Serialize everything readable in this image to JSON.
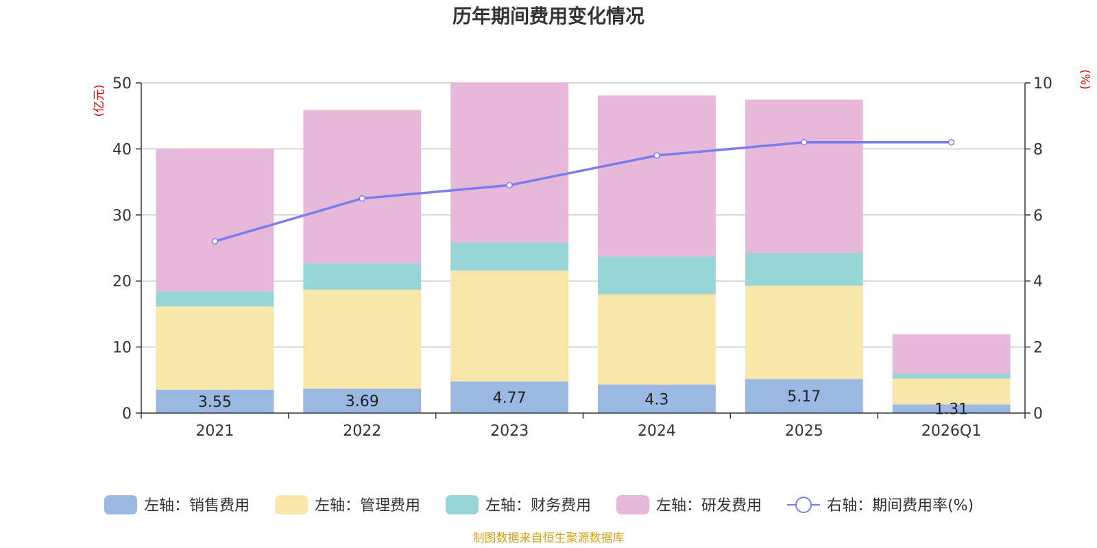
{
  "chart_data": {
    "type": "bar",
    "stacked": true,
    "title": "历年期间费用变化情况",
    "categories": [
      "2021",
      "2022",
      "2023",
      "2024",
      "2025",
      "2026Q1"
    ],
    "left_axis": {
      "unit": "(亿元)",
      "ylim": [
        0,
        50
      ],
      "ticks": [
        0,
        10,
        20,
        30,
        40,
        50
      ]
    },
    "right_axis": {
      "unit": "(%)",
      "ylim": [
        0,
        10
      ],
      "ticks": [
        0,
        2,
        4,
        6,
        8,
        10
      ]
    },
    "series": [
      {
        "name": "左轴：销售费用",
        "axis": "left",
        "type": "bar",
        "color": "#9bb8e2",
        "values": [
          3.55,
          3.69,
          4.77,
          4.3,
          5.17,
          1.31
        ],
        "labels": [
          "3.55",
          "3.69",
          "4.77",
          "4.3",
          "5.17",
          "1.31"
        ]
      },
      {
        "name": "左轴：管理费用",
        "axis": "left",
        "type": "bar",
        "color": "#f8e7a9",
        "values": [
          12.6,
          15.0,
          16.8,
          13.7,
          14.1,
          3.9
        ]
      },
      {
        "name": "左轴：财务费用",
        "axis": "left",
        "type": "bar",
        "color": "#98d5d6",
        "values": [
          2.3,
          4.0,
          4.3,
          5.7,
          5.0,
          0.8
        ]
      },
      {
        "name": "左轴：研发费用",
        "axis": "left",
        "type": "bar",
        "color": "#e7b8d9",
        "values": [
          21.6,
          23.2,
          24.2,
          24.4,
          23.2,
          5.9
        ]
      },
      {
        "name": "右轴：期间费用率(%)",
        "axis": "right",
        "type": "line",
        "color": "#7a7cf0",
        "values": [
          5.2,
          6.5,
          6.9,
          7.8,
          8.2,
          8.2
        ]
      }
    ],
    "grid": true,
    "legend_position": "bottom"
  },
  "source": "制图数据来自恒生聚源数据库"
}
